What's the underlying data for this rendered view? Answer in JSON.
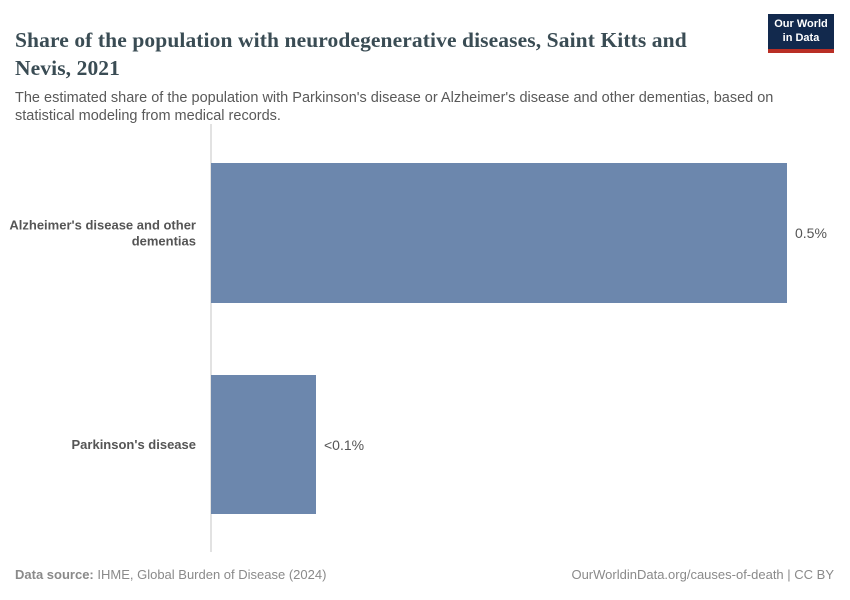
{
  "header": {
    "title": "Share of the population with neurodegenerative diseases, Saint Kitts and Nevis, 2021",
    "subtitle": "The estimated share of the population with Parkinson's disease or Alzheimer's disease and other dementias, based on statistical modeling from medical records.",
    "logo": {
      "line1": "Our World",
      "line2": "in Data"
    }
  },
  "chart_data": {
    "type": "bar",
    "orientation": "horizontal",
    "title": "Share of the population with neurodegenerative diseases, Saint Kitts and Nevis, 2021",
    "categories": [
      "Alzheimer's disease and other dementias",
      "Parkinson's disease"
    ],
    "values": [
      0.5,
      0.091
    ],
    "value_labels": [
      "0.5%",
      "<0.1%"
    ],
    "xlabel": "",
    "ylabel": "",
    "xlim": [
      0,
      0.5
    ],
    "grid": false,
    "legend": "none",
    "bar_color": "#6c87ad"
  },
  "footer": {
    "datasource_label": "Data source:",
    "datasource_value": " IHME, Global Burden of Disease (2024)",
    "credit": "OurWorldinData.org/causes-of-death | CC BY"
  },
  "colors": {
    "bar": "#6c87ad",
    "title_text": "#3a4c54",
    "body_text": "#555555",
    "footer_text": "#8a8a8a",
    "axis_line": "#e2e2e2",
    "logo_bg": "#12294d",
    "logo_underline": "#b92e25"
  }
}
